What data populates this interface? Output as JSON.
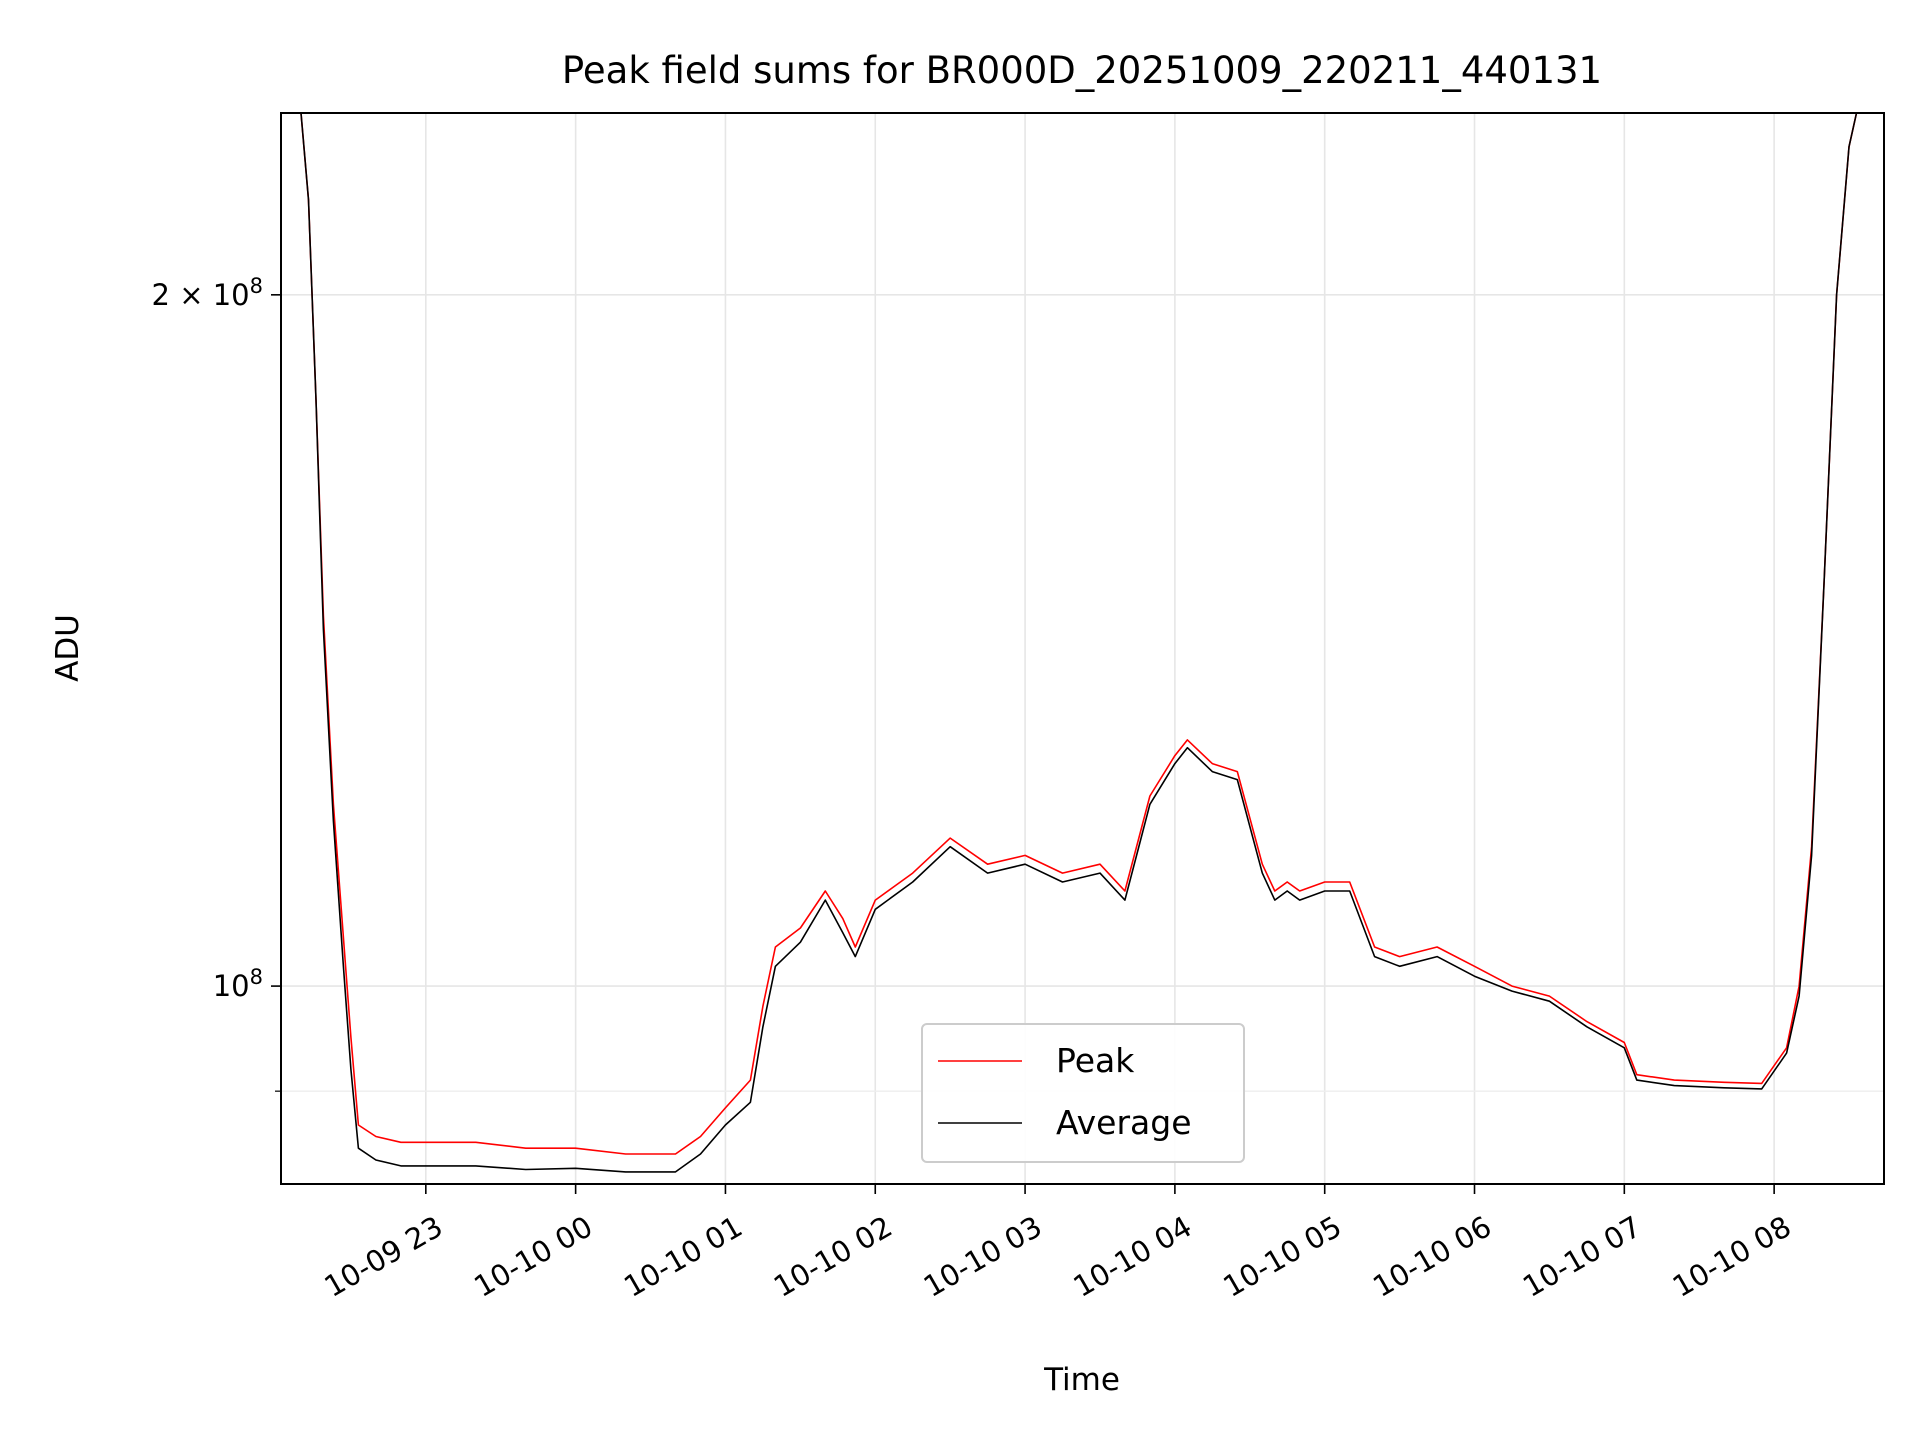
{
  "chart_data": {
    "type": "line",
    "title": "Peak field sums for BR000D_20251009_220211_440131",
    "xlabel": "Time",
    "ylabel": "ADU",
    "yscale": "log",
    "xlim": [
      "2025-10-09 22:02",
      "2025-10-10 08:44"
    ],
    "ylim": [
      82000000,
      240000000
    ],
    "grid": true,
    "legend_position": "lower-center",
    "x_ticks": [
      {
        "t": "2025-10-09 23:00",
        "label": "10-09 23"
      },
      {
        "t": "2025-10-10 00:00",
        "label": "10-10 00"
      },
      {
        "t": "2025-10-10 01:00",
        "label": "10-10 01"
      },
      {
        "t": "2025-10-10 02:00",
        "label": "10-10 02"
      },
      {
        "t": "2025-10-10 03:00",
        "label": "10-10 03"
      },
      {
        "t": "2025-10-10 04:00",
        "label": "10-10 04"
      },
      {
        "t": "2025-10-10 05:00",
        "label": "10-10 05"
      },
      {
        "t": "2025-10-10 06:00",
        "label": "10-10 06"
      },
      {
        "t": "2025-10-10 07:00",
        "label": "10-10 07"
      },
      {
        "t": "2025-10-10 08:00",
        "label": "10-10 08"
      }
    ],
    "y_ticks": [
      {
        "v": 100000000,
        "base": "10",
        "exp": "8",
        "mantissa": ""
      },
      {
        "v": 200000000,
        "base": "10",
        "exp": "8",
        "mantissa": "2 × "
      }
    ],
    "y_minor_ticks": [
      90000000
    ],
    "series": [
      {
        "name": "Peak",
        "color": "#ff0000",
        "points": [
          [
            "2025-10-09 22:02",
            240000000
          ],
          [
            "2025-10-09 22:10",
            240000000
          ],
          [
            "2025-10-09 22:13",
            220000000
          ],
          [
            "2025-10-09 22:16",
            180000000
          ],
          [
            "2025-10-09 22:19",
            145000000
          ],
          [
            "2025-10-09 22:23",
            120000000
          ],
          [
            "2025-10-09 22:27",
            105000000
          ],
          [
            "2025-10-09 22:30",
            95000000
          ],
          [
            "2025-10-09 22:33",
            87000000
          ],
          [
            "2025-10-09 22:40",
            86000000
          ],
          [
            "2025-10-09 22:50",
            85500000
          ],
          [
            "2025-10-09 23:00",
            85500000
          ],
          [
            "2025-10-09 23:20",
            85500000
          ],
          [
            "2025-10-09 23:40",
            85000000
          ],
          [
            "2025-10-10 00:00",
            85000000
          ],
          [
            "2025-10-10 00:20",
            84500000
          ],
          [
            "2025-10-10 00:40",
            84500000
          ],
          [
            "2025-10-10 00:50",
            86000000
          ],
          [
            "2025-10-10 01:00",
            88500000
          ],
          [
            "2025-10-10 01:10",
            91000000
          ],
          [
            "2025-10-10 01:15",
            98000000
          ],
          [
            "2025-10-10 01:20",
            104000000
          ],
          [
            "2025-10-10 01:30",
            106000000
          ],
          [
            "2025-10-10 01:40",
            110000000
          ],
          [
            "2025-10-10 01:47",
            107000000
          ],
          [
            "2025-10-10 01:52",
            104000000
          ],
          [
            "2025-10-10 02:00",
            109000000
          ],
          [
            "2025-10-10 02:15",
            112000000
          ],
          [
            "2025-10-10 02:30",
            116000000
          ],
          [
            "2025-10-10 02:45",
            113000000
          ],
          [
            "2025-10-10 03:00",
            114000000
          ],
          [
            "2025-10-10 03:15",
            112000000
          ],
          [
            "2025-10-10 03:30",
            113000000
          ],
          [
            "2025-10-10 03:40",
            110000000
          ],
          [
            "2025-10-10 03:50",
            121000000
          ],
          [
            "2025-10-10 04:00",
            126000000
          ],
          [
            "2025-10-10 04:05",
            128000000
          ],
          [
            "2025-10-10 04:15",
            125000000
          ],
          [
            "2025-10-10 04:25",
            124000000
          ],
          [
            "2025-10-10 04:35",
            113000000
          ],
          [
            "2025-10-10 04:40",
            110000000
          ],
          [
            "2025-10-10 04:45",
            111000000
          ],
          [
            "2025-10-10 04:50",
            110000000
          ],
          [
            "2025-10-10 05:00",
            111000000
          ],
          [
            "2025-10-10 05:10",
            111000000
          ],
          [
            "2025-10-10 05:20",
            104000000
          ],
          [
            "2025-10-10 05:30",
            103000000
          ],
          [
            "2025-10-10 05:45",
            104000000
          ],
          [
            "2025-10-10 06:00",
            102000000
          ],
          [
            "2025-10-10 06:15",
            100000000
          ],
          [
            "2025-10-10 06:30",
            99000000
          ],
          [
            "2025-10-10 06:45",
            96500000
          ],
          [
            "2025-10-10 07:00",
            94500000
          ],
          [
            "2025-10-10 07:05",
            91500000
          ],
          [
            "2025-10-10 07:20",
            91000000
          ],
          [
            "2025-10-10 07:40",
            90800000
          ],
          [
            "2025-10-10 07:55",
            90700000
          ],
          [
            "2025-10-10 08:05",
            94000000
          ],
          [
            "2025-10-10 08:10",
            100000000
          ],
          [
            "2025-10-10 08:15",
            115000000
          ],
          [
            "2025-10-10 08:20",
            150000000
          ],
          [
            "2025-10-10 08:25",
            200000000
          ],
          [
            "2025-10-10 08:30",
            232000000
          ],
          [
            "2025-10-10 08:33",
            240000000
          ],
          [
            "2025-10-10 08:44",
            240000000
          ]
        ]
      },
      {
        "name": "Average",
        "color": "#000000",
        "points": [
          [
            "2025-10-09 22:02",
            240000000
          ],
          [
            "2025-10-09 22:10",
            240000000
          ],
          [
            "2025-10-09 22:13",
            220000000
          ],
          [
            "2025-10-09 22:16",
            180000000
          ],
          [
            "2025-10-09 22:19",
            143000000
          ],
          [
            "2025-10-09 22:23",
            118000000
          ],
          [
            "2025-10-09 22:27",
            102000000
          ],
          [
            "2025-10-09 22:30",
            92000000
          ],
          [
            "2025-10-09 22:33",
            85000000
          ],
          [
            "2025-10-09 22:40",
            84000000
          ],
          [
            "2025-10-09 22:50",
            83500000
          ],
          [
            "2025-10-09 23:00",
            83500000
          ],
          [
            "2025-10-09 23:20",
            83500000
          ],
          [
            "2025-10-09 23:40",
            83200000
          ],
          [
            "2025-10-10 00:00",
            83300000
          ],
          [
            "2025-10-10 00:20",
            83000000
          ],
          [
            "2025-10-10 00:40",
            83000000
          ],
          [
            "2025-10-10 00:50",
            84500000
          ],
          [
            "2025-10-10 01:00",
            87000000
          ],
          [
            "2025-10-10 01:10",
            89000000
          ],
          [
            "2025-10-10 01:15",
            96000000
          ],
          [
            "2025-10-10 01:20",
            102000000
          ],
          [
            "2025-10-10 01:30",
            104500000
          ],
          [
            "2025-10-10 01:40",
            109000000
          ],
          [
            "2025-10-10 01:47",
            105500000
          ],
          [
            "2025-10-10 01:52",
            103000000
          ],
          [
            "2025-10-10 02:00",
            108000000
          ],
          [
            "2025-10-10 02:15",
            111000000
          ],
          [
            "2025-10-10 02:30",
            115000000
          ],
          [
            "2025-10-10 02:45",
            112000000
          ],
          [
            "2025-10-10 03:00",
            113000000
          ],
          [
            "2025-10-10 03:15",
            111000000
          ],
          [
            "2025-10-10 03:30",
            112000000
          ],
          [
            "2025-10-10 03:40",
            109000000
          ],
          [
            "2025-10-10 03:50",
            120000000
          ],
          [
            "2025-10-10 04:00",
            125000000
          ],
          [
            "2025-10-10 04:05",
            127000000
          ],
          [
            "2025-10-10 04:15",
            124000000
          ],
          [
            "2025-10-10 04:25",
            123000000
          ],
          [
            "2025-10-10 04:35",
            112000000
          ],
          [
            "2025-10-10 04:40",
            109000000
          ],
          [
            "2025-10-10 04:45",
            110000000
          ],
          [
            "2025-10-10 04:50",
            109000000
          ],
          [
            "2025-10-10 05:00",
            110000000
          ],
          [
            "2025-10-10 05:10",
            110000000
          ],
          [
            "2025-10-10 05:20",
            103000000
          ],
          [
            "2025-10-10 05:30",
            102000000
          ],
          [
            "2025-10-10 05:45",
            103000000
          ],
          [
            "2025-10-10 06:00",
            101000000
          ],
          [
            "2025-10-10 06:15",
            99500000
          ],
          [
            "2025-10-10 06:30",
            98500000
          ],
          [
            "2025-10-10 06:45",
            96000000
          ],
          [
            "2025-10-10 07:00",
            94000000
          ],
          [
            "2025-10-10 07:05",
            91000000
          ],
          [
            "2025-10-10 07:20",
            90500000
          ],
          [
            "2025-10-10 07:40",
            90300000
          ],
          [
            "2025-10-10 07:55",
            90200000
          ],
          [
            "2025-10-10 08:05",
            93500000
          ],
          [
            "2025-10-10 08:10",
            99000000
          ],
          [
            "2025-10-10 08:15",
            114000000
          ],
          [
            "2025-10-10 08:20",
            150000000
          ],
          [
            "2025-10-10 08:25",
            200000000
          ],
          [
            "2025-10-10 08:30",
            232000000
          ],
          [
            "2025-10-10 08:33",
            240000000
          ],
          [
            "2025-10-10 08:44",
            240000000
          ]
        ]
      }
    ]
  }
}
